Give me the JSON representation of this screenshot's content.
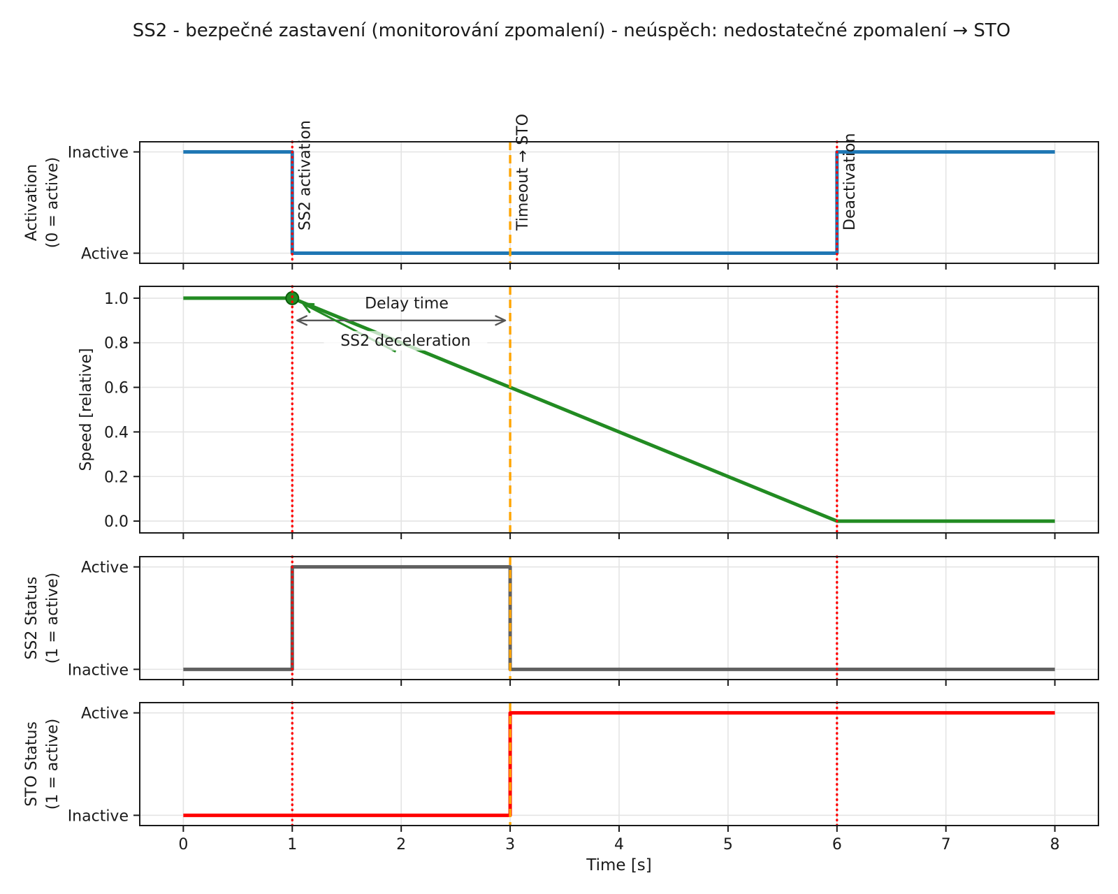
{
  "title": "SS2 - bezpečné zastavení (monitorování zpomalení) - neúspěch: nedostatečné zpomalení → STO",
  "xlabel": "Time [s]",
  "colors": {
    "activation_line": "#1f77b4",
    "speed_line": "#228b22",
    "ss2_status_line": "#606060",
    "sto_status_line": "#ff0000",
    "event_red": "#ff0000",
    "event_orange": "#ffa500",
    "annotation_gray": "#555555",
    "grid": "#e4e4e4",
    "spine": "#1a1a1a"
  },
  "chart_data": {
    "type": "line",
    "title": "SS2 - bezpečné zastavení (monitorování zpomalení) - neúspěch: nedostatečné zpomalení → STO",
    "xlabel": "Time [s]",
    "xlim": [
      -0.4,
      8.4
    ],
    "x_ticks": [
      0,
      1,
      2,
      3,
      4,
      5,
      6,
      7,
      8
    ],
    "grid": true,
    "panels": [
      {
        "name": "activation",
        "ylabel_lines": [
          "Activation",
          "(0 = active)"
        ],
        "yticks": [
          {
            "value": 1,
            "label": "Inactive"
          },
          {
            "value": 0,
            "label": "Active"
          }
        ],
        "series": [
          {
            "name": "activation-signal",
            "color": "#1f77b4",
            "points": [
              [
                0,
                1
              ],
              [
                1,
                1
              ],
              [
                1,
                0
              ],
              [
                6,
                0
              ],
              [
                6,
                1
              ],
              [
                8,
                1
              ]
            ]
          }
        ]
      },
      {
        "name": "speed",
        "ylabel_lines": [
          "Speed [relative]"
        ],
        "yticks": [
          {
            "value": 1.0,
            "label": "1.0"
          },
          {
            "value": 0.8,
            "label": "0.8"
          },
          {
            "value": 0.6,
            "label": "0.6"
          },
          {
            "value": 0.4,
            "label": "0.4"
          },
          {
            "value": 0.2,
            "label": "0.2"
          },
          {
            "value": 0.0,
            "label": "0.0"
          }
        ],
        "series": [
          {
            "name": "speed-curve",
            "color": "#228b22",
            "points": [
              [
                0,
                1
              ],
              [
                1,
                1
              ],
              [
                6,
                0
              ],
              [
                8,
                0
              ]
            ],
            "marker": {
              "point": [
                1,
                1
              ],
              "color": "#228b22"
            }
          }
        ]
      },
      {
        "name": "ss2-status",
        "ylabel_lines": [
          "SS2 Status",
          "(1 = active)"
        ],
        "yticks": [
          {
            "value": 1,
            "label": "Active"
          },
          {
            "value": 0,
            "label": "Inactive"
          }
        ],
        "series": [
          {
            "name": "ss2-status-signal",
            "color": "#606060",
            "points": [
              [
                0,
                0
              ],
              [
                1,
                0
              ],
              [
                1,
                1
              ],
              [
                3,
                1
              ],
              [
                3,
                0
              ],
              [
                8,
                0
              ]
            ]
          }
        ]
      },
      {
        "name": "sto-status",
        "ylabel_lines": [
          "STO Status",
          "(1 = active)"
        ],
        "yticks": [
          {
            "value": 1,
            "label": "Active"
          },
          {
            "value": 0,
            "label": "Inactive"
          }
        ],
        "series": [
          {
            "name": "sto-status-signal",
            "color": "#ff0000",
            "points": [
              [
                0,
                0
              ],
              [
                3,
                0
              ],
              [
                3,
                1
              ],
              [
                8,
                1
              ]
            ]
          }
        ]
      }
    ],
    "vlines": [
      {
        "x": 1,
        "color": "#ff0000",
        "style": "dotted",
        "label": "SS2 activation"
      },
      {
        "x": 3,
        "color": "#ffa500",
        "style": "dashed",
        "label": "Timeout → STO"
      },
      {
        "x": 6,
        "color": "#ff0000",
        "style": "dotted",
        "label": "Deactivation"
      }
    ],
    "annotations": {
      "delay": {
        "text": "Delay time",
        "color": "#555555",
        "x_from": 1,
        "x_to": 3,
        "y": 0.9,
        "text_pos": [
          2.05,
          0.955
        ]
      },
      "deceleration": {
        "text": "SS2 deceleration",
        "color": "#228b22",
        "arrow_from": [
          1.95,
          0.76
        ],
        "arrow_to": [
          1.1,
          0.975
        ],
        "text_pos": [
          2.04,
          0.787
        ]
      }
    }
  }
}
